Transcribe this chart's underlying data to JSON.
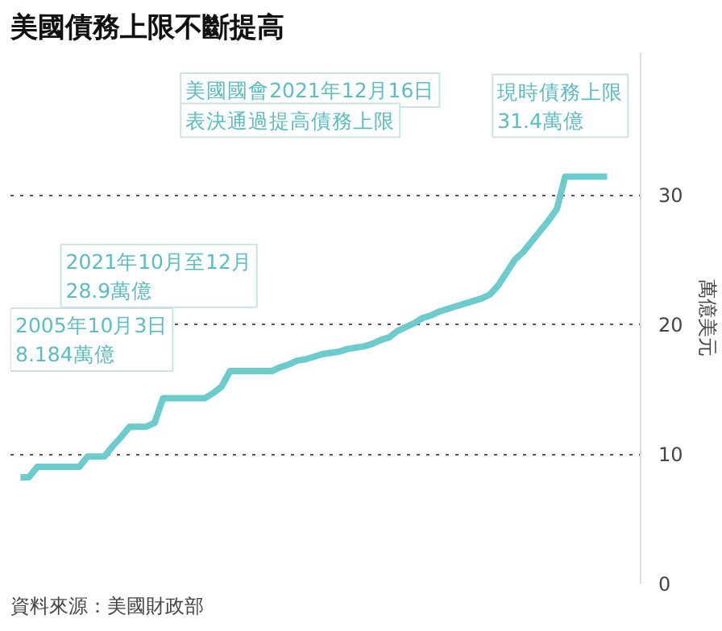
{
  "chart_data": {
    "type": "line",
    "title": "美國債務上限不斷提高",
    "ylabel": "萬億美元",
    "categories": [
      null,
      null,
      null,
      null,
      null,
      null,
      null,
      null,
      null,
      null,
      null,
      null,
      null,
      null,
      null,
      null,
      null,
      null,
      null,
      null,
      null,
      null,
      null,
      null,
      null,
      null,
      null,
      null,
      null,
      null,
      null,
      null,
      null,
      null,
      null,
      null,
      null,
      null,
      null,
      null,
      null,
      null,
      null,
      null,
      null,
      null,
      null,
      null,
      null,
      null,
      null,
      null,
      null,
      null,
      null,
      null,
      null,
      null,
      null,
      null,
      null,
      null,
      null,
      null,
      null,
      null,
      null,
      null,
      null,
      null,
      null
    ],
    "series": [
      {
        "color": "#6ccccc",
        "values": [
          8.2,
          8.2,
          9.0,
          9.0,
          9.0,
          9.0,
          9.0,
          9.0,
          9.8,
          9.8,
          9.8,
          10.6,
          11.3,
          12.1,
          12.1,
          12.1,
          12.4,
          14.3,
          14.3,
          14.3,
          14.3,
          14.3,
          14.3,
          14.7,
          15.2,
          16.4,
          16.4,
          16.4,
          16.4,
          16.4,
          16.4,
          16.7,
          16.9,
          17.2,
          17.3,
          17.5,
          17.7,
          17.8,
          17.9,
          18.1,
          18.2,
          18.3,
          18.5,
          18.8,
          19.0,
          19.5,
          19.8,
          20.1,
          20.5,
          20.7,
          21.0,
          21.2,
          21.4,
          21.6,
          21.8,
          22.0,
          22.3,
          23.0,
          24.0,
          25.0,
          25.6,
          26.4,
          27.2,
          28.0,
          28.9,
          31.4,
          31.4,
          31.4,
          31.4,
          31.4,
          31.4
        ]
      }
    ],
    "ylim": [
      0,
      41
    ],
    "yticks": [
      0,
      10,
      20,
      30
    ],
    "grid": "y",
    "tick_labels": "y",
    "annotations": [
      "2005年10月3日\n8.184萬億",
      "2021年10月至12月\n28.9萬億",
      "美國國會2021年12月16日",
      "表決通過提高債務上限",
      "現時債務上限\n31.4萬億",
      "資料來源：美國財政部"
    ]
  }
}
